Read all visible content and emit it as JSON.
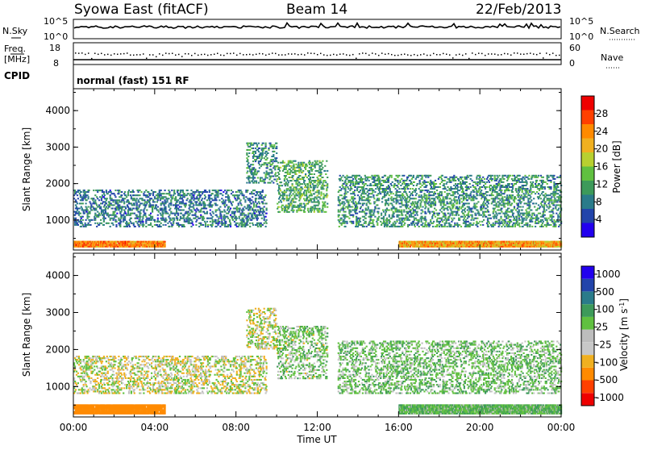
{
  "header": {
    "station": "Syowa East (fitACF)",
    "beam": "Beam 14",
    "date": "22/Feb/2013"
  },
  "panels": {
    "noise": {
      "left_label": "N.Sky",
      "right_label": "N.Search",
      "left_top": "10^5",
      "left_bottom": "10^0",
      "right_top": "10^5",
      "right_bottom": "10^0"
    },
    "freq": {
      "left_label_1": "Freq.",
      "left_label_2": "[MHz]",
      "right_label": "Nave",
      "left_top": "18",
      "left_bottom": "8",
      "right_top": "60",
      "right_bottom": "0"
    },
    "cpid": {
      "label": "CPID",
      "value": "normal (fast) 151 RF"
    }
  },
  "x_axis": {
    "title": "Time UT",
    "ticks": [
      "00:00",
      "04:00",
      "08:00",
      "12:00",
      "16:00",
      "20:00",
      "00:00"
    ]
  },
  "colors": {
    "power": [
      "#2200ee",
      "#2244aa",
      "#2a7b8a",
      "#3d9a5a",
      "#60c040",
      "#b8d030",
      "#f0b020",
      "#ff8a00",
      "#ff4000",
      "#ee0000"
    ],
    "velocity": [
      "#ee0000",
      "#ff4000",
      "#ff8a00",
      "#f0b020",
      "#c8c8c8",
      "#bdbdbd",
      "#60c040",
      "#3d9a5a",
      "#2a7b8a",
      "#2244aa",
      "#2200ee"
    ]
  },
  "chart_data": [
    {
      "type": "heatmap",
      "name": "power",
      "x_range_hours": [
        0,
        24
      ],
      "ylabel": "Slant Range [km]",
      "yticks": [
        1000,
        2000,
        3000,
        4000
      ],
      "ylim": [
        180,
        4600
      ],
      "colorbar": {
        "label": "Power [dB]",
        "ticks": [
          4,
          8,
          12,
          16,
          20,
          24,
          28
        ],
        "range": [
          0,
          32
        ]
      },
      "features": [
        {
          "x_hours": [
            0.0,
            4.5
          ],
          "range_km": [
            250,
            400
          ],
          "value": 24
        },
        {
          "x_hours": [
            16.0,
            24.0
          ],
          "range_km": [
            250,
            400
          ],
          "value": 22
        },
        {
          "x_hours": [
            0.0,
            9.5
          ],
          "range_km": [
            800,
            1800
          ],
          "value": 8
        },
        {
          "x_hours": [
            8.5,
            10.0
          ],
          "range_km": [
            2000,
            3100
          ],
          "value": 10
        },
        {
          "x_hours": [
            10.0,
            12.5
          ],
          "range_km": [
            1200,
            2600
          ],
          "value": 12
        },
        {
          "x_hours": [
            13.0,
            24.0
          ],
          "range_km": [
            800,
            2200
          ],
          "value": 10
        }
      ]
    },
    {
      "type": "heatmap",
      "name": "velocity",
      "x_range_hours": [
        0,
        24
      ],
      "ylabel": "Slant Range [km]",
      "yticks": [
        1000,
        2000,
        3000,
        4000
      ],
      "ylim": [
        180,
        4600
      ],
      "colorbar": {
        "label": "Velocity [m s^-1]",
        "ticks": [
          "1000",
          "500",
          "100",
          "25",
          "-25",
          "-100",
          "-500",
          "-1000"
        ]
      },
      "features": [
        {
          "x_hours": [
            0.0,
            4.5
          ],
          "range_km": [
            250,
            500
          ],
          "value": -300
        },
        {
          "x_hours": [
            16.0,
            24.0
          ],
          "range_km": [
            250,
            500
          ],
          "value": 80
        },
        {
          "x_hours": [
            0.0,
            9.5
          ],
          "range_km": [
            800,
            1800
          ],
          "value": 0
        },
        {
          "x_hours": [
            8.5,
            10.0
          ],
          "range_km": [
            2000,
            3100
          ],
          "value": 0
        },
        {
          "x_hours": [
            10.0,
            12.5
          ],
          "range_km": [
            1200,
            2600
          ],
          "value": 50
        },
        {
          "x_hours": [
            13.0,
            24.0
          ],
          "range_km": [
            800,
            2200
          ],
          "value": 60
        }
      ]
    }
  ]
}
